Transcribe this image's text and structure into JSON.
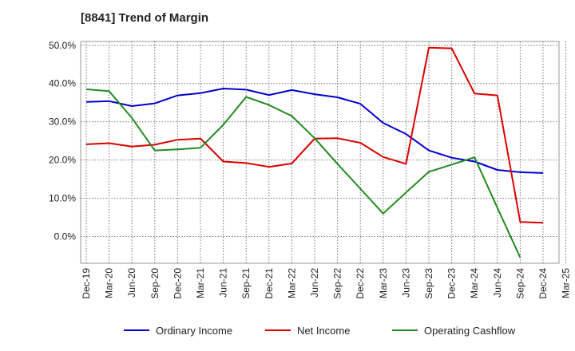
{
  "chart_data": {
    "type": "line",
    "title": "[8841]  Trend of Margin",
    "xlabel": "",
    "ylabel": "",
    "ylim": [
      -7,
      51
    ],
    "yticks": [
      0,
      10,
      20,
      30,
      40,
      50
    ],
    "ytick_labels": [
      "0.0%",
      "10.0%",
      "20.0%",
      "30.0%",
      "40.0%",
      "50.0%"
    ],
    "x": [
      "Dec-19",
      "Mar-20",
      "Jun-20",
      "Sep-20",
      "Dec-20",
      "Mar-21",
      "Jun-21",
      "Sep-21",
      "Dec-21",
      "Mar-22",
      "Jun-22",
      "Sep-22",
      "Dec-22",
      "Mar-23",
      "Jun-23",
      "Sep-23",
      "Dec-23",
      "Mar-24",
      "Jun-24",
      "Sep-24",
      "Dec-24",
      "Mar-25"
    ],
    "grid": true,
    "legend_position": "bottom",
    "series": [
      {
        "name": "Ordinary Income",
        "color": "#0000cc",
        "values": [
          35.2,
          35.4,
          34.1,
          34.8,
          36.9,
          37.5,
          38.7,
          38.4,
          37.0,
          38.3,
          37.2,
          36.4,
          34.7,
          29.7,
          26.8,
          22.5,
          20.6,
          19.6,
          17.4,
          16.8,
          16.6,
          null
        ]
      },
      {
        "name": "Net Income",
        "color": "#dd0000",
        "values": [
          24.1,
          24.4,
          23.5,
          24.0,
          25.3,
          25.6,
          19.6,
          19.2,
          18.2,
          19.1,
          25.6,
          25.7,
          24.5,
          20.8,
          19.0,
          49.4,
          49.2,
          37.4,
          36.9,
          3.8,
          3.6,
          null
        ]
      },
      {
        "name": "Operating Cashflow",
        "color": "#228b22",
        "values": [
          38.5,
          38.0,
          31.0,
          22.5,
          22.8,
          23.2,
          29.2,
          36.5,
          34.4,
          31.5,
          25.7,
          19.0,
          12.5,
          6.0,
          11.5,
          16.9,
          18.8,
          20.7,
          7.5,
          -5.5,
          null,
          null
        ]
      }
    ]
  }
}
